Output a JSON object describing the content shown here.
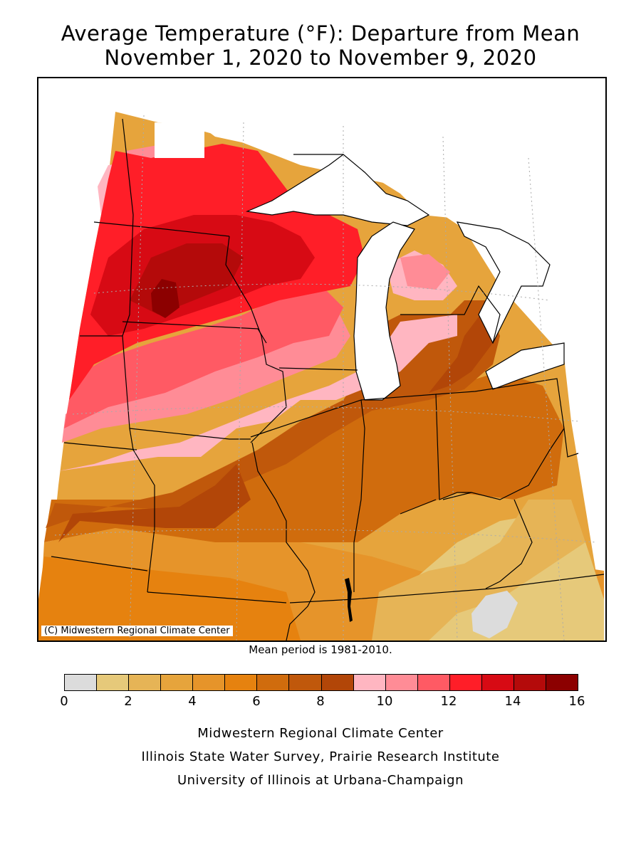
{
  "title_line1": "Average Temperature (°F): Departure from Mean",
  "title_line2": "November 1, 2020 to November 9, 2020",
  "map_credit": "(C) Midwestern Regional Climate Center",
  "mean_note": "Mean period is 1981-2010.",
  "legend": {
    "colors": [
      "#dcdcdc",
      "#e6c97a",
      "#e6b456",
      "#e6a43c",
      "#e6942a",
      "#e6820f",
      "#d06c0d",
      "#c0580b",
      "#b24608",
      "#ffb6c1",
      "#ff8c96",
      "#ff5a64",
      "#ff1e28",
      "#d70a14",
      "#b40a0a",
      "#8c0000"
    ],
    "tick_labels": [
      "0",
      "2",
      "4",
      "6",
      "8",
      "10",
      "12",
      "14",
      "16"
    ]
  },
  "footer": {
    "line1": "Midwestern Regional Climate Center",
    "line2": "Illinois State Water Survey, Prairie Research Institute",
    "line3": "University of Illinois at Urbana-Champaign"
  }
}
